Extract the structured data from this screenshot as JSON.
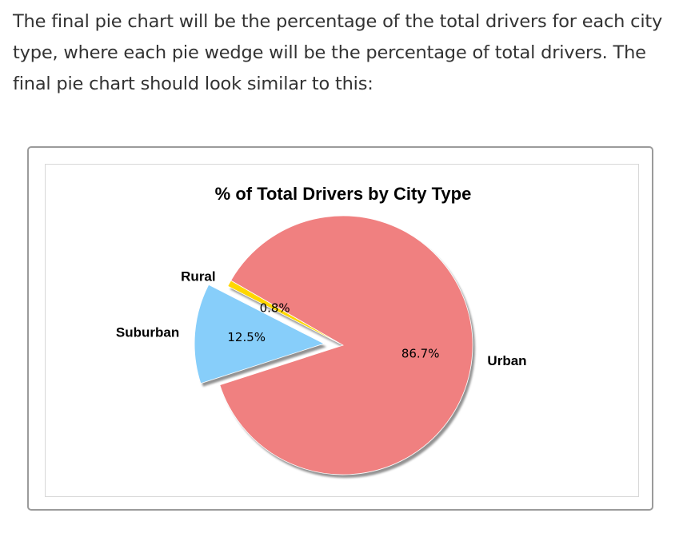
{
  "intro_text": "The final pie chart will be the percentage of the total drivers for each city type, where each pie wedge will be the percentage of total drivers. The final pie chart should look similar to this:",
  "chart_data": {
    "type": "pie",
    "title": "% of Total Drivers by City Type",
    "categories": [
      "Rural",
      "Suburban",
      "Urban"
    ],
    "values": [
      0.8,
      12.5,
      86.7
    ],
    "value_labels": [
      "0.8%",
      "12.5%",
      "86.7%"
    ],
    "colors": [
      "#FFD700",
      "#87CEFA",
      "#F08080"
    ],
    "exploded": [
      "Suburban"
    ],
    "shadow": true,
    "start_angle_deg": 150
  }
}
